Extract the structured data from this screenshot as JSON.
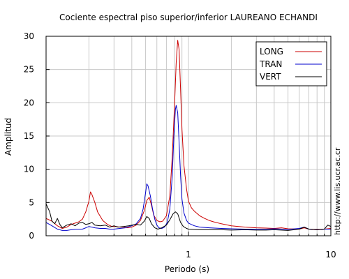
{
  "chart_data": {
    "type": "line",
    "title": "Cociente espectral piso superior/inferior LAUREANO ECHANDI",
    "xlabel": "Periodo (s)",
    "ylabel": "Amplitud",
    "x_scale": "log",
    "xlim": [
      0.1,
      10
    ],
    "ylim": [
      0,
      30
    ],
    "x_tick_labels": [
      {
        "value": 1,
        "label": "1"
      },
      {
        "value": 10,
        "label": "10"
      }
    ],
    "y_ticks": [
      0,
      5,
      10,
      15,
      20,
      25,
      30
    ],
    "grid": true,
    "legend_position": "top-right",
    "colors": {
      "LONG": "#cc0000",
      "TRAN": "#0000cc",
      "VERT": "#000000"
    },
    "series": [
      {
        "name": "LONG",
        "color": "#cc0000",
        "points": [
          [
            0.1,
            2.6
          ],
          [
            0.11,
            2.2
          ],
          [
            0.12,
            1.5
          ],
          [
            0.13,
            1.1
          ],
          [
            0.14,
            1.3
          ],
          [
            0.15,
            1.7
          ],
          [
            0.16,
            1.9
          ],
          [
            0.17,
            2.1
          ],
          [
            0.18,
            2.5
          ],
          [
            0.19,
            3.6
          ],
          [
            0.2,
            5.2
          ],
          [
            0.205,
            6.6
          ],
          [
            0.21,
            6.2
          ],
          [
            0.22,
            5.0
          ],
          [
            0.23,
            3.6
          ],
          [
            0.25,
            2.3
          ],
          [
            0.27,
            1.7
          ],
          [
            0.29,
            1.4
          ],
          [
            0.31,
            1.4
          ],
          [
            0.33,
            1.3
          ],
          [
            0.35,
            1.3
          ],
          [
            0.37,
            1.2
          ],
          [
            0.4,
            1.3
          ],
          [
            0.43,
            1.6
          ],
          [
            0.46,
            2.3
          ],
          [
            0.49,
            3.8
          ],
          [
            0.51,
            5.3
          ],
          [
            0.53,
            5.8
          ],
          [
            0.55,
            4.6
          ],
          [
            0.57,
            3.1
          ],
          [
            0.6,
            2.3
          ],
          [
            0.63,
            2.1
          ],
          [
            0.66,
            2.2
          ],
          [
            0.7,
            3.0
          ],
          [
            0.74,
            6.0
          ],
          [
            0.77,
            12.0
          ],
          [
            0.8,
            20.0
          ],
          [
            0.82,
            26.0
          ],
          [
            0.84,
            29.4
          ],
          [
            0.86,
            28.0
          ],
          [
            0.88,
            22.0
          ],
          [
            0.9,
            16.0
          ],
          [
            0.93,
            10.5
          ],
          [
            0.97,
            7.0
          ],
          [
            1.0,
            5.2
          ],
          [
            1.05,
            4.2
          ],
          [
            1.1,
            3.7
          ],
          [
            1.2,
            3.0
          ],
          [
            1.3,
            2.6
          ],
          [
            1.4,
            2.3
          ],
          [
            1.5,
            2.1
          ],
          [
            1.7,
            1.8
          ],
          [
            2.0,
            1.5
          ],
          [
            2.5,
            1.3
          ],
          [
            3.0,
            1.2
          ],
          [
            3.5,
            1.15
          ],
          [
            4.0,
            1.1
          ],
          [
            4.5,
            1.2
          ],
          [
            5.0,
            1.05
          ],
          [
            6.0,
            1.0
          ],
          [
            6.5,
            1.2
          ],
          [
            7.0,
            1.0
          ],
          [
            8.0,
            0.95
          ],
          [
            9.0,
            1.0
          ],
          [
            10.0,
            1.1
          ]
        ]
      },
      {
        "name": "TRAN",
        "color": "#0000cc",
        "points": [
          [
            0.1,
            2.0
          ],
          [
            0.11,
            1.5
          ],
          [
            0.12,
            1.0
          ],
          [
            0.13,
            0.8
          ],
          [
            0.14,
            0.8
          ],
          [
            0.15,
            0.9
          ],
          [
            0.16,
            1.0
          ],
          [
            0.17,
            1.0
          ],
          [
            0.18,
            1.0
          ],
          [
            0.19,
            1.2
          ],
          [
            0.2,
            1.4
          ],
          [
            0.21,
            1.3
          ],
          [
            0.22,
            1.2
          ],
          [
            0.24,
            1.1
          ],
          [
            0.26,
            1.1
          ],
          [
            0.28,
            1.0
          ],
          [
            0.3,
            1.0
          ],
          [
            0.33,
            1.1
          ],
          [
            0.36,
            1.2
          ],
          [
            0.4,
            1.5
          ],
          [
            0.43,
            1.8
          ],
          [
            0.46,
            2.6
          ],
          [
            0.48,
            4.0
          ],
          [
            0.5,
            6.5
          ],
          [
            0.51,
            7.8
          ],
          [
            0.52,
            7.5
          ],
          [
            0.54,
            6.0
          ],
          [
            0.56,
            4.0
          ],
          [
            0.58,
            2.5
          ],
          [
            0.6,
            1.6
          ],
          [
            0.62,
            1.2
          ],
          [
            0.65,
            1.1
          ],
          [
            0.68,
            1.3
          ],
          [
            0.71,
            2.0
          ],
          [
            0.74,
            4.0
          ],
          [
            0.77,
            9.0
          ],
          [
            0.79,
            15.0
          ],
          [
            0.81,
            19.0
          ],
          [
            0.82,
            19.6
          ],
          [
            0.84,
            18.5
          ],
          [
            0.86,
            14.0
          ],
          [
            0.88,
            9.0
          ],
          [
            0.9,
            5.5
          ],
          [
            0.93,
            3.4
          ],
          [
            0.97,
            2.3
          ],
          [
            1.0,
            1.9
          ],
          [
            1.1,
            1.5
          ],
          [
            1.2,
            1.3
          ],
          [
            1.4,
            1.2
          ],
          [
            1.7,
            1.1
          ],
          [
            2.0,
            1.05
          ],
          [
            2.5,
            1.0
          ],
          [
            3.0,
            1.0
          ],
          [
            3.5,
            1.0
          ],
          [
            4.0,
            1.05
          ],
          [
            5.0,
            0.95
          ],
          [
            6.0,
            1.1
          ],
          [
            6.5,
            1.3
          ],
          [
            7.0,
            1.0
          ],
          [
            8.0,
            0.9
          ],
          [
            9.0,
            1.0
          ],
          [
            10.0,
            1.0
          ]
        ]
      },
      {
        "name": "VERT",
        "color": "#000000",
        "points": [
          [
            0.1,
            4.8
          ],
          [
            0.103,
            4.2
          ],
          [
            0.106,
            3.6
          ],
          [
            0.11,
            2.2
          ],
          [
            0.115,
            1.8
          ],
          [
            0.12,
            2.6
          ],
          [
            0.125,
            1.7
          ],
          [
            0.13,
            1.2
          ],
          [
            0.14,
            1.6
          ],
          [
            0.15,
            1.8
          ],
          [
            0.16,
            1.5
          ],
          [
            0.17,
            1.9
          ],
          [
            0.18,
            2.0
          ],
          [
            0.19,
            1.7
          ],
          [
            0.2,
            1.8
          ],
          [
            0.21,
            2.0
          ],
          [
            0.22,
            1.6
          ],
          [
            0.24,
            1.5
          ],
          [
            0.26,
            1.6
          ],
          [
            0.28,
            1.3
          ],
          [
            0.3,
            1.5
          ],
          [
            0.32,
            1.3
          ],
          [
            0.35,
            1.4
          ],
          [
            0.38,
            1.5
          ],
          [
            0.4,
            1.6
          ],
          [
            0.43,
            1.7
          ],
          [
            0.46,
            1.6
          ],
          [
            0.49,
            2.2
          ],
          [
            0.51,
            2.9
          ],
          [
            0.53,
            2.6
          ],
          [
            0.55,
            1.8
          ],
          [
            0.58,
            1.2
          ],
          [
            0.61,
            1.0
          ],
          [
            0.65,
            1.2
          ],
          [
            0.7,
            1.6
          ],
          [
            0.74,
            2.4
          ],
          [
            0.78,
            3.3
          ],
          [
            0.81,
            3.6
          ],
          [
            0.84,
            3.3
          ],
          [
            0.88,
            2.0
          ],
          [
            0.92,
            1.4
          ],
          [
            0.97,
            1.1
          ],
          [
            1.0,
            1.0
          ],
          [
            1.1,
            0.95
          ],
          [
            1.2,
            0.9
          ],
          [
            1.4,
            0.9
          ],
          [
            1.7,
            0.9
          ],
          [
            2.0,
            0.85
          ],
          [
            2.5,
            0.9
          ],
          [
            3.0,
            0.85
          ],
          [
            3.5,
            0.85
          ],
          [
            4.0,
            0.9
          ],
          [
            5.0,
            0.8
          ],
          [
            6.0,
            1.0
          ],
          [
            6.5,
            1.3
          ],
          [
            7.0,
            1.0
          ],
          [
            8.0,
            0.9
          ],
          [
            9.0,
            1.0
          ],
          [
            9.5,
            1.6
          ],
          [
            10.0,
            1.4
          ]
        ]
      }
    ]
  },
  "credit": "http://www.lis.ucr.ac.cr"
}
